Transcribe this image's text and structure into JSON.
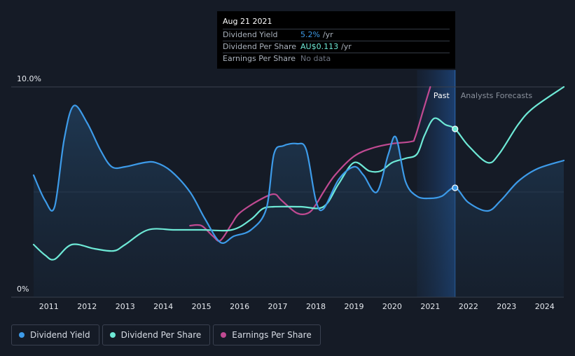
{
  "tooltip": {
    "date": "Aug 21 2021",
    "rows": [
      {
        "label": "Dividend Yield",
        "value": "5.2%",
        "unit": "/yr",
        "color": "#3d9be9"
      },
      {
        "label": "Dividend Per Share",
        "value": "AU$0.113",
        "unit": "/yr",
        "color": "#6ee9d6"
      },
      {
        "label": "Earnings Per Share",
        "value": "No data",
        "unit": "",
        "color": "#6e7582"
      }
    ]
  },
  "legend": [
    {
      "label": "Dividend Yield",
      "color": "#3d9be9"
    },
    {
      "label": "Dividend Per Share",
      "color": "#6ee9d6"
    },
    {
      "label": "Earnings Per Share",
      "color": "#c04a92"
    }
  ],
  "chart_data": {
    "type": "line",
    "y_axis": {
      "top_label": "10.0%",
      "bottom_label": "0%",
      "range": [
        0,
        10
      ]
    },
    "x_ticks": [
      "2011",
      "2012",
      "2013",
      "2014",
      "2015",
      "2016",
      "2017",
      "2018",
      "2019",
      "2020",
      "2021",
      "2022",
      "2023",
      "2024"
    ],
    "x_range": [
      2010.6,
      2024.5
    ],
    "zones": {
      "past_label": "Past",
      "forecast_label": "Analysts Forecasts",
      "past_start": 2020.65,
      "divider": 2021.65
    },
    "series": [
      {
        "name": "Dividend Yield",
        "color": "#3d9be9",
        "points": [
          [
            2010.6,
            5.8
          ],
          [
            2010.9,
            4.6
          ],
          [
            2011.15,
            4.3
          ],
          [
            2011.4,
            7.5
          ],
          [
            2011.65,
            9.1
          ],
          [
            2012.0,
            8.3
          ],
          [
            2012.35,
            7.0
          ],
          [
            2012.65,
            6.2
          ],
          [
            2013.0,
            6.2
          ],
          [
            2013.5,
            6.4
          ],
          [
            2013.8,
            6.4
          ],
          [
            2014.2,
            6.0
          ],
          [
            2014.7,
            5.0
          ],
          [
            2015.1,
            3.7
          ],
          [
            2015.5,
            2.6
          ],
          [
            2015.85,
            2.9
          ],
          [
            2016.3,
            3.2
          ],
          [
            2016.7,
            4.2
          ],
          [
            2016.9,
            6.8
          ],
          [
            2017.15,
            7.2
          ],
          [
            2017.5,
            7.3
          ],
          [
            2017.75,
            7.0
          ],
          [
            2018.0,
            4.6
          ],
          [
            2018.2,
            4.2
          ],
          [
            2018.6,
            5.6
          ],
          [
            2019.0,
            6.2
          ],
          [
            2019.25,
            5.8
          ],
          [
            2019.6,
            5.0
          ],
          [
            2019.9,
            6.8
          ],
          [
            2020.1,
            7.6
          ],
          [
            2020.35,
            5.5
          ],
          [
            2020.65,
            4.8
          ],
          [
            2021.0,
            4.7
          ],
          [
            2021.3,
            4.8
          ],
          [
            2021.65,
            5.2
          ],
          [
            2022.0,
            4.5
          ],
          [
            2022.5,
            4.1
          ],
          [
            2022.85,
            4.6
          ],
          [
            2023.3,
            5.5
          ],
          [
            2023.8,
            6.1
          ],
          [
            2024.5,
            6.5
          ]
        ]
      },
      {
        "name": "Dividend Per Share",
        "color": "#6ee9d6",
        "points": [
          [
            2010.6,
            2.5
          ],
          [
            2010.9,
            2.0
          ],
          [
            2011.15,
            1.8
          ],
          [
            2011.6,
            2.5
          ],
          [
            2012.2,
            2.3
          ],
          [
            2012.7,
            2.2
          ],
          [
            2013.0,
            2.5
          ],
          [
            2013.6,
            3.2
          ],
          [
            2014.3,
            3.2
          ],
          [
            2015.0,
            3.2
          ],
          [
            2015.8,
            3.2
          ],
          [
            2016.3,
            3.7
          ],
          [
            2016.6,
            4.2
          ],
          [
            2016.9,
            4.3
          ],
          [
            2017.6,
            4.3
          ],
          [
            2018.2,
            4.3
          ],
          [
            2018.6,
            5.4
          ],
          [
            2019.0,
            6.4
          ],
          [
            2019.4,
            6.0
          ],
          [
            2019.7,
            6.0
          ],
          [
            2020.0,
            6.4
          ],
          [
            2020.35,
            6.6
          ],
          [
            2020.65,
            6.8
          ],
          [
            2020.85,
            7.7
          ],
          [
            2021.1,
            8.5
          ],
          [
            2021.4,
            8.2
          ],
          [
            2021.65,
            8.0
          ],
          [
            2022.0,
            7.2
          ],
          [
            2022.5,
            6.4
          ],
          [
            2022.8,
            6.8
          ],
          [
            2023.3,
            8.2
          ],
          [
            2023.7,
            9.0
          ],
          [
            2024.5,
            10.0
          ]
        ]
      },
      {
        "name": "Earnings Per Share",
        "color": "#c04a92",
        "points": [
          [
            2014.7,
            3.4
          ],
          [
            2015.0,
            3.4
          ],
          [
            2015.3,
            2.9
          ],
          [
            2015.5,
            2.7
          ],
          [
            2015.8,
            3.5
          ],
          [
            2016.0,
            4.0
          ],
          [
            2016.5,
            4.6
          ],
          [
            2016.9,
            4.9
          ],
          [
            2017.1,
            4.6
          ],
          [
            2017.5,
            4.0
          ],
          [
            2017.8,
            4.0
          ],
          [
            2018.0,
            4.4
          ],
          [
            2018.2,
            5.0
          ],
          [
            2018.5,
            5.8
          ],
          [
            2019.0,
            6.7
          ],
          [
            2019.5,
            7.1
          ],
          [
            2020.0,
            7.3
          ],
          [
            2020.5,
            7.4
          ],
          [
            2020.6,
            7.6
          ],
          [
            2020.8,
            8.8
          ],
          [
            2021.0,
            10.0
          ]
        ]
      }
    ],
    "highlight_points": [
      {
        "series": "Dividend Yield",
        "x": 2021.65,
        "y": 5.2
      },
      {
        "series": "Dividend Per Share",
        "x": 2021.65,
        "y": 8.0
      }
    ],
    "grid": true,
    "legend_position": "bottom-left"
  }
}
